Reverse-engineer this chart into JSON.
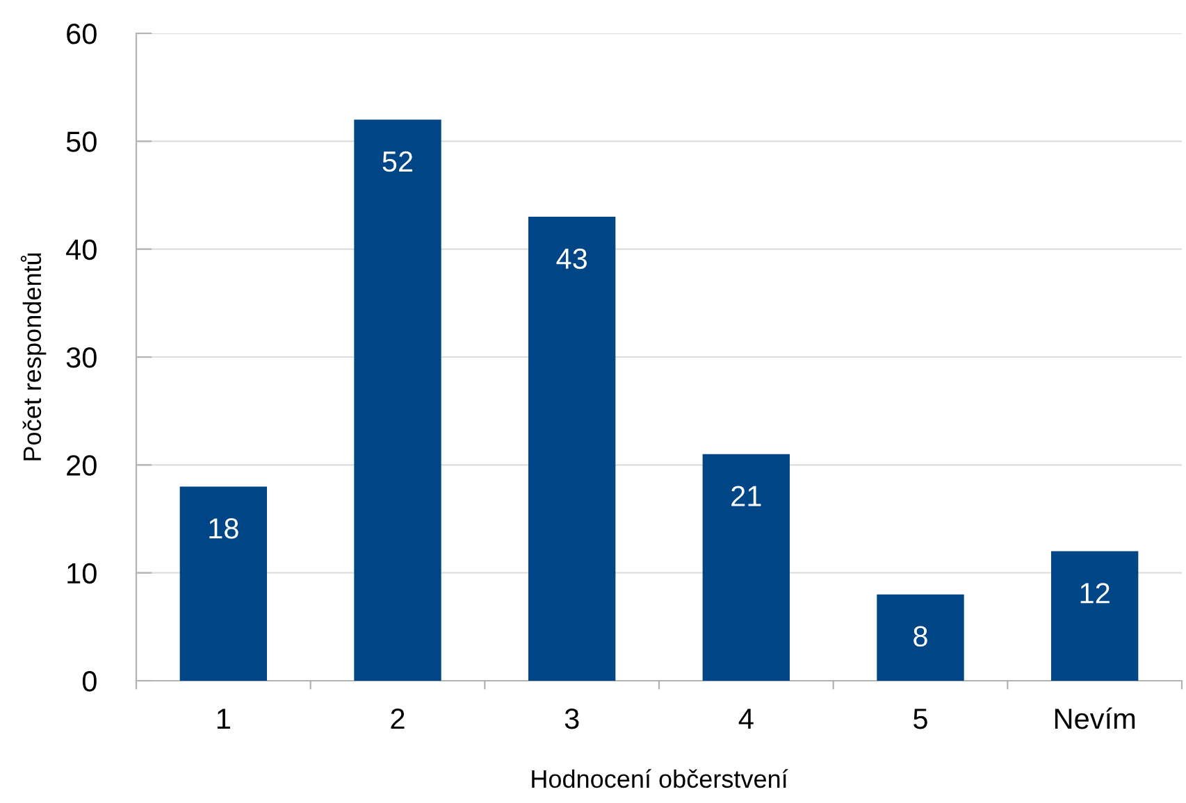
{
  "chart_data": {
    "type": "bar",
    "xlabel": "Hodnocení občerstvení",
    "ylabel": "Počet respondentů",
    "categories": [
      "1",
      "2",
      "3",
      "4",
      "5",
      "Nevím"
    ],
    "values": [
      18,
      52,
      43,
      21,
      8,
      12
    ],
    "color": "#004586",
    "ylim": [
      0,
      60
    ],
    "yticks": [
      0,
      10,
      20,
      30,
      40,
      50,
      60
    ],
    "grid": "y",
    "data_labels": true
  }
}
